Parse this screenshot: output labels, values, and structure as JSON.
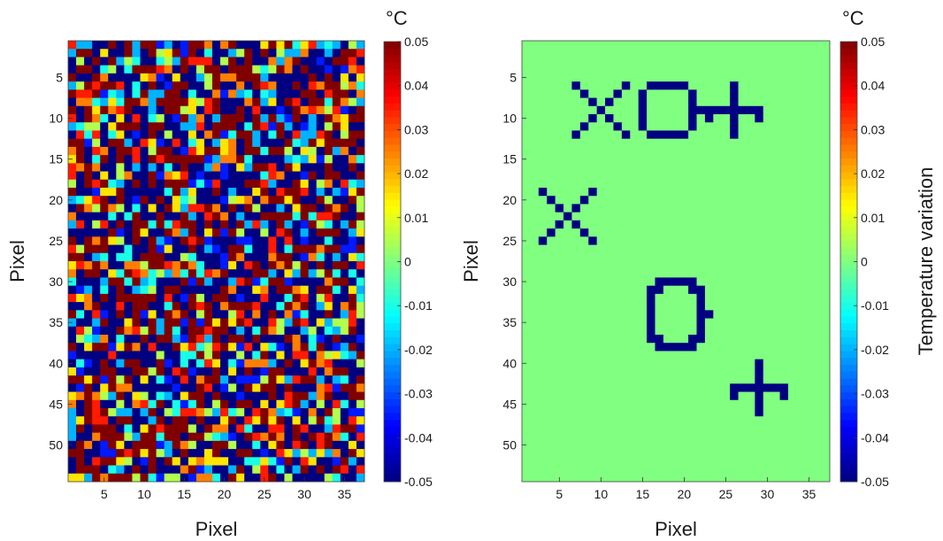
{
  "chart_data": [
    {
      "type": "heatmap",
      "panel": "left",
      "description_of_values": "random noise field",
      "rows": 54,
      "cols": 37,
      "xlabel": "Pixel",
      "ylabel": "Pixel",
      "xticks": [
        5,
        10,
        15,
        20,
        25,
        30,
        35
      ],
      "yticks": [
        5,
        10,
        15,
        20,
        25,
        30,
        35,
        40,
        45,
        50
      ],
      "clim": [
        -0.05,
        0.05
      ],
      "colorbar": {
        "unit": "°C",
        "ticks": [
          "0.05",
          "0.04",
          "0.03",
          "0.02",
          "0.01",
          "0",
          "-0.01",
          "-0.02",
          "-0.03",
          "-0.04",
          "-0.05"
        ],
        "label": ""
      },
      "colormap": "jet"
    },
    {
      "type": "heatmap",
      "panel": "right",
      "rows": 54,
      "cols": 37,
      "background_value": 0,
      "marker_value": -0.05,
      "shapes": [
        {
          "shape": "x",
          "center_col": 10,
          "center_row": 9,
          "size": 3
        },
        {
          "shape": "o",
          "center_col": 18,
          "center_row": 9,
          "radius_col": 3.5,
          "radius_row": 3.5
        },
        {
          "shape": "+",
          "center_col": 26,
          "center_row": 9,
          "size": 3
        },
        {
          "shape": "x",
          "center_col": 6,
          "center_row": 22,
          "size": 3
        },
        {
          "shape": "o",
          "center_col": 19,
          "center_row": 34,
          "radius_col": 3.5,
          "radius_row": 4
        },
        {
          "shape": "+",
          "center_col": 29,
          "center_row": 43,
          "size": 3
        }
      ],
      "xlabel": "Pixel",
      "ylabel": "Pixel",
      "xticks": [
        5,
        10,
        15,
        20,
        25,
        30,
        35
      ],
      "yticks": [
        5,
        10,
        15,
        20,
        25,
        30,
        35,
        40,
        45,
        50
      ],
      "clim": [
        -0.05,
        0.05
      ],
      "colorbar": {
        "unit": "°C",
        "ticks": [
          "0.05",
          "0.04",
          "0.03",
          "0.02",
          "0.01",
          "0",
          "-0.01",
          "-0.02",
          "-0.03",
          "-0.04",
          "-0.05"
        ],
        "label": "Temperature variation"
      },
      "colormap": "jet"
    }
  ]
}
